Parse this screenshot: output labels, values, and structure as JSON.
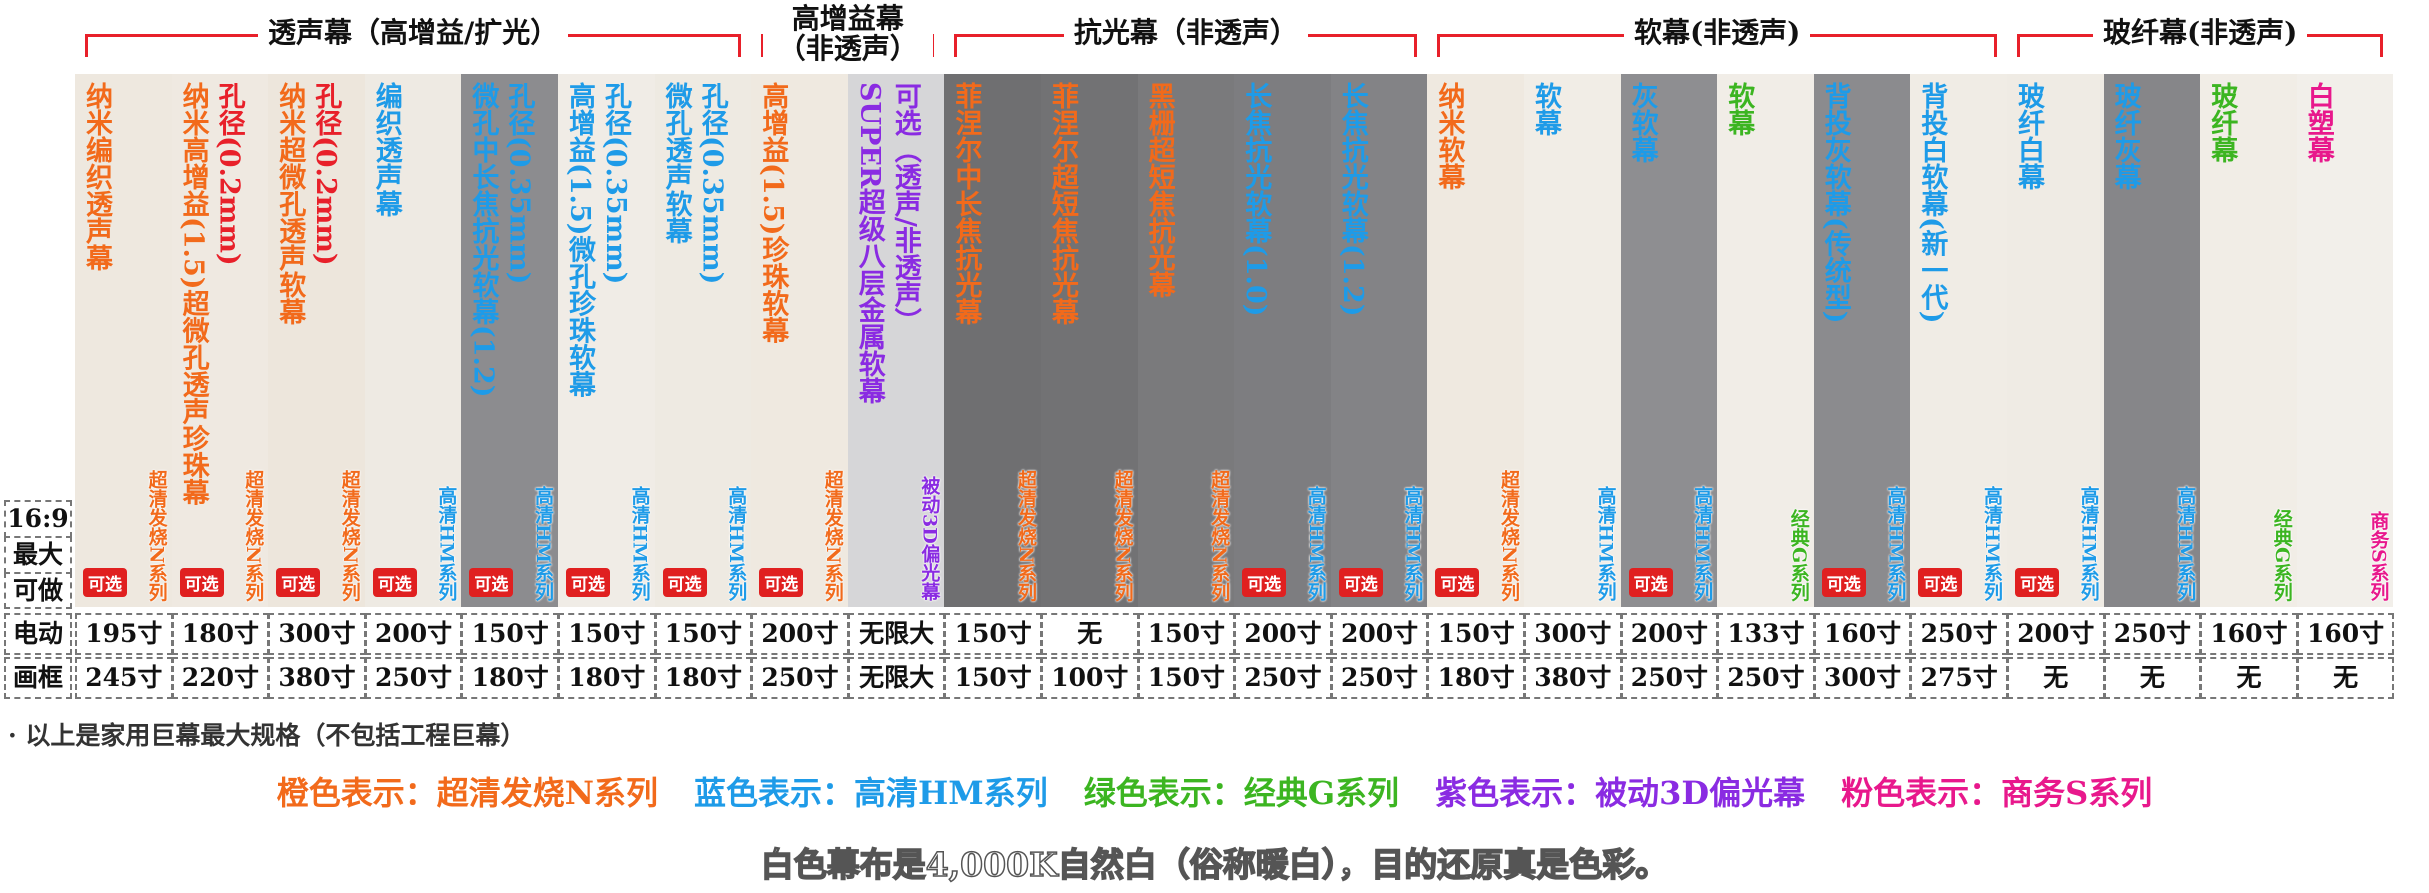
{
  "groups": [
    {
      "title": "透声幕（高增益/扩光）",
      "columns": [
        {
          "name": "纳米编织透声幕",
          "name_color": "#f26a1b",
          "series": "超清发烧N系列",
          "series_color": "#f26a1b",
          "badge": "可选",
          "swatch": "#eee8df",
          "motorized": "195寸",
          "framed": "245寸"
        },
        {
          "name": "纳米高增益(1.5)超微孔透声珍珠幕",
          "name_color": "#f26a1b",
          "note": "孔径(0.2mm)",
          "note_color": "#e8202a",
          "series": "超清发烧N系列",
          "series_color": "#f26a1b",
          "badge": "可选",
          "swatch": "#efe9e1",
          "motorized": "180寸",
          "framed": "220寸"
        },
        {
          "name": "纳米超微孔透声软幕",
          "name_color": "#f26a1b",
          "note": "孔径(0.2mm)",
          "note_color": "#e8202a",
          "series": "超清发烧N系列",
          "series_color": "#f26a1b",
          "badge": "可选",
          "swatch": "#ede6dc",
          "motorized": "300寸",
          "framed": "380寸"
        },
        {
          "name": "编织透声幕",
          "name_color": "#1e9be8",
          "series": "高清HM系列",
          "series_color": "#1e9be8",
          "badge": "可选",
          "swatch": "#eeeae3",
          "motorized": "200寸",
          "framed": "250寸"
        },
        {
          "name": "微孔中长焦抗光软幕(1.2)",
          "name_color": "#1e9be8",
          "note": "孔径(0.35mm)",
          "note_color": "#1e9be8",
          "series": "高清HM系列",
          "series_color": "#1e9be8",
          "badge": "可选",
          "swatch": "#8c8c8f",
          "motorized": "150寸",
          "framed": "180寸"
        },
        {
          "name": "高增益(1.5)微孔珍珠软幕",
          "name_color": "#1e9be8",
          "note": "孔径(0.35mm)",
          "note_color": "#1e9be8",
          "series": "高清HM系列",
          "series_color": "#1e9be8",
          "badge": "可选",
          "swatch": "#f0ece6",
          "motorized": "150寸",
          "framed": "180寸"
        },
        {
          "name": "微孔透声软幕",
          "name_color": "#1e9be8",
          "note": "孔径(0.35mm)",
          "note_color": "#1e9be8",
          "series": "高清HM系列",
          "series_color": "#1e9be8",
          "badge": "可选",
          "swatch": "#eeeae2",
          "motorized": "150寸",
          "framed": "180寸"
        }
      ]
    },
    {
      "title": "高增益幕（非透声）",
      "columns": [
        {
          "name": "高增益(1.5)珍珠软幕",
          "name_color": "#f26a1b",
          "series": "超清发烧N系列",
          "series_color": "#f26a1b",
          "badge": "可选",
          "swatch": "#efe9e0",
          "motorized": "200寸",
          "framed": "250寸"
        },
        {
          "name": "SUPER超级八层金属软幕",
          "name_color": "#8a2be2",
          "note": "可选（透声/非透声）",
          "note_color": "#8a2be2",
          "series": "被动3D偏光幕",
          "series_color": "#8a2be2",
          "swatch": "#d6d6d8",
          "motorized": "无限大",
          "framed": "无限大"
        }
      ]
    },
    {
      "title": "抗光幕（非透声）",
      "columns": [
        {
          "name": "菲涅尔中长焦抗光幕",
          "name_color": "#f26a1b",
          "series": "超清发烧N系列",
          "series_color": "#f26a1b",
          "swatch": "#6f6f71",
          "motorized": "150寸",
          "framed": "150寸"
        },
        {
          "name": "菲涅尔超短焦抗光幕",
          "name_color": "#f26a1b",
          "series": "超清发烧N系列",
          "series_color": "#f26a1b",
          "swatch": "#727274",
          "motorized": "无",
          "framed": "100寸"
        },
        {
          "name": "黑栅超短焦抗光幕",
          "name_color": "#f26a1b",
          "series": "超清发烧N系列",
          "series_color": "#f26a1b",
          "swatch": "#7a7a7c",
          "motorized": "150寸",
          "framed": "150寸"
        },
        {
          "name": "长焦抗光软幕(1.0)",
          "name_color": "#1e9be8",
          "series": "高清HM系列",
          "series_color": "#1e9be8",
          "badge": "可选",
          "swatch": "#7d7d80",
          "motorized": "200寸",
          "framed": "250寸"
        },
        {
          "name": "长焦抗光软幕(1.2)",
          "name_color": "#1e9be8",
          "series": "高清HM系列",
          "series_color": "#1e9be8",
          "badge": "可选",
          "swatch": "#838386",
          "motorized": "200寸",
          "framed": "250寸"
        }
      ]
    },
    {
      "title": "软幕(非透声)",
      "columns": [
        {
          "name": "纳米软幕",
          "name_color": "#f26a1b",
          "series": "超清发烧N系列",
          "series_color": "#f26a1b",
          "badge": "可选",
          "swatch": "#efe9e0",
          "motorized": "150寸",
          "framed": "180寸"
        },
        {
          "name": "软幕",
          "name_color": "#1e9be8",
          "series": "高清HM系列",
          "series_color": "#1e9be8",
          "swatch": "#f1ede6",
          "motorized": "300寸",
          "framed": "380寸"
        },
        {
          "name": "灰软幕",
          "name_color": "#1e9be8",
          "series": "高清HM系列",
          "series_color": "#1e9be8",
          "badge": "可选",
          "swatch": "#8e8e91",
          "motorized": "200寸",
          "framed": "250寸"
        },
        {
          "name": "软幕",
          "name_color": "#3cb521",
          "series": "经典G系列",
          "series_color": "#3cb521",
          "swatch": "#f1ede7",
          "motorized": "133寸",
          "framed": "250寸"
        },
        {
          "name": "背投灰软幕(传统型)",
          "name_color": "#1e9be8",
          "series": "高清HM系列",
          "series_color": "#1e9be8",
          "badge": "可选",
          "swatch": "#8b8b8e",
          "motorized": "160寸",
          "framed": "300寸"
        },
        {
          "name": "背投白软幕(新一代)",
          "name_color": "#1e9be8",
          "series": "高清HM系列",
          "series_color": "#1e9be8",
          "badge": "可选",
          "swatch": "#f0ece5",
          "motorized": "250寸",
          "framed": "275寸"
        }
      ]
    },
    {
      "title": "玻纤幕(非透声)",
      "columns": [
        {
          "name": "玻纤白幕",
          "name_color": "#1e9be8",
          "series": "高清HM系列",
          "series_color": "#1e9be8",
          "badge": "可选",
          "swatch": "#efebe4",
          "motorized": "200寸",
          "framed": "无"
        },
        {
          "name": "玻纤灰幕",
          "name_color": "#1e9be8",
          "series": "高清HM系列",
          "series_color": "#1e9be8",
          "swatch": "#868689",
          "motorized": "250寸",
          "framed": "无"
        },
        {
          "name": "玻纤幕",
          "name_color": "#3cb521",
          "series": "经典G系列",
          "series_color": "#3cb521",
          "swatch": "#f1ede6",
          "motorized": "160寸",
          "framed": "无"
        },
        {
          "name": "白塑幕",
          "name_color": "#e8188c",
          "series": "商务S系列",
          "series_color": "#e8188c",
          "swatch": "#f2efea",
          "motorized": "160寸",
          "framed": "无"
        }
      ]
    }
  ],
  "row_labels": {
    "ratio": "16:9",
    "max": "最大",
    "can": "可做",
    "motorized": "电动",
    "framed": "画框"
  },
  "footnote": "· 以上是家用巨幕最大规格（不包括工程巨幕）",
  "legend": [
    {
      "label": "橙色表示：超清发烧N系列",
      "color": "#f26a1b"
    },
    {
      "label": "蓝色表示：高清HM系列",
      "color": "#1e9be8"
    },
    {
      "label": "绿色表示：经典G系列",
      "color": "#3cb521"
    },
    {
      "label": "紫色表示：被动3D偏光幕",
      "color": "#8a2be2"
    },
    {
      "label": "粉色表示：商务S系列",
      "color": "#e8188c"
    }
  ],
  "closing": "白色幕布是4,000K自然白（俗称暖白），目的还原真是色彩。"
}
